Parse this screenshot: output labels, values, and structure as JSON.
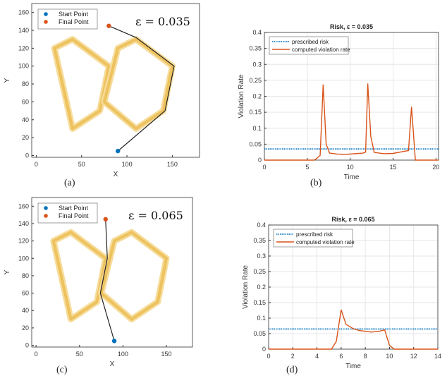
{
  "chart_data": [
    {
      "type": "scatter",
      "id": "a",
      "caption": "(a)",
      "xlabel": "X",
      "ylabel": "Y",
      "xlim": [
        -5,
        180
      ],
      "ylim": [
        -2,
        170
      ],
      "xticks": [
        0,
        50,
        100,
        150
      ],
      "yticks": [
        0,
        20,
        40,
        60,
        80,
        100,
        120,
        140,
        160
      ],
      "annotation": "ε = 0.035",
      "legend": [
        "Start Point",
        "Final Point"
      ],
      "legend_position": "top-left",
      "obstacles": [
        [
          [
            20,
            120
          ],
          [
            40,
            130
          ],
          [
            80,
            100
          ],
          [
            70,
            50
          ],
          [
            40,
            30
          ]
        ],
        [
          [
            90,
            120
          ],
          [
            110,
            130
          ],
          [
            150,
            100
          ],
          [
            140,
            50
          ],
          [
            110,
            30
          ],
          [
            75,
            60
          ]
        ]
      ],
      "path": [
        [
          90,
          5
        ],
        [
          142,
          50
        ],
        [
          152,
          100
        ],
        [
          110,
          132
        ],
        [
          80,
          145
        ]
      ],
      "start": [
        90,
        5
      ],
      "final": [
        80,
        145
      ]
    },
    {
      "type": "line",
      "id": "b",
      "caption": "(b)",
      "title": "Risk, ε = 0.035",
      "xlabel": "Time",
      "ylabel": "Violation Rate",
      "xlim": [
        0,
        20.3
      ],
      "ylim": [
        0,
        0.4
      ],
      "xticks": [
        0,
        5,
        10,
        15,
        20
      ],
      "yticks": [
        0,
        0.05,
        0.1,
        0.15,
        0.2,
        0.25,
        0.3,
        0.35,
        0.4
      ],
      "grid": true,
      "legend_position": "top-left",
      "series": [
        {
          "name": "prescribed risk",
          "style": "dotted",
          "color": "#0072bd",
          "x": [
            0,
            20.3
          ],
          "y": [
            0.035,
            0.035
          ]
        },
        {
          "name": "computed violation rate",
          "color": "#d95319",
          "x": [
            0,
            5.8,
            6,
            6.5,
            6.85,
            7.2,
            7.6,
            8.5,
            9.5,
            11.5,
            11.8,
            12.05,
            12.4,
            12.8,
            14,
            15,
            16.8,
            17.15,
            17.6,
            20.3
          ],
          "y": [
            0,
            0,
            0.003,
            0.015,
            0.237,
            0.05,
            0.022,
            0.019,
            0.018,
            0.022,
            0.025,
            0.24,
            0.075,
            0.024,
            0.02,
            0.021,
            0.03,
            0.167,
            0,
            0
          ]
        }
      ]
    },
    {
      "type": "scatter",
      "id": "c",
      "caption": "(c)",
      "xlabel": "X",
      "ylabel": "Y",
      "xlim": [
        -5,
        180
      ],
      "ylim": [
        -2,
        170
      ],
      "xticks": [
        0,
        50,
        100,
        150
      ],
      "yticks": [
        0,
        20,
        40,
        60,
        80,
        100,
        120,
        140,
        160
      ],
      "annotation": "ε = 0.065",
      "legend": [
        "Start Point",
        "Final Point"
      ],
      "legend_position": "top-left",
      "obstacles": [
        [
          [
            20,
            120
          ],
          [
            40,
            130
          ],
          [
            80,
            100
          ],
          [
            70,
            50
          ],
          [
            40,
            30
          ]
        ],
        [
          [
            90,
            120
          ],
          [
            110,
            130
          ],
          [
            150,
            100
          ],
          [
            140,
            50
          ],
          [
            110,
            30
          ],
          [
            75,
            60
          ]
        ]
      ],
      "path": [
        [
          90,
          5
        ],
        [
          74,
          60
        ],
        [
          82,
          100
        ],
        [
          80,
          145
        ]
      ],
      "start": [
        90,
        5
      ],
      "final": [
        80,
        145
      ]
    },
    {
      "type": "line",
      "id": "d",
      "caption": "(d)",
      "title": "Risk, ε = 0.065",
      "xlabel": "Time",
      "ylabel": "Violation Rate",
      "xlim": [
        0,
        14
      ],
      "ylim": [
        0,
        0.4
      ],
      "xticks": [
        0,
        2,
        4,
        6,
        8,
        10,
        12,
        14
      ],
      "yticks": [
        0,
        0.05,
        0.1,
        0.15,
        0.2,
        0.25,
        0.3,
        0.35,
        0.4
      ],
      "grid": true,
      "legend_position": "top-left",
      "series": [
        {
          "name": "prescribed risk",
          "style": "dotted",
          "color": "#0072bd",
          "x": [
            0,
            14
          ],
          "y": [
            0.065,
            0.065
          ]
        },
        {
          "name": "computed violation rate",
          "color": "#d95319",
          "x": [
            0,
            5.2,
            5.6,
            6,
            6.4,
            7,
            7.5,
            8.5,
            9.2,
            9.6,
            10,
            10.4,
            14
          ],
          "y": [
            0,
            0,
            0.025,
            0.127,
            0.08,
            0.066,
            0.06,
            0.055,
            0.058,
            0.062,
            0.012,
            0,
            0
          ]
        }
      ]
    }
  ]
}
